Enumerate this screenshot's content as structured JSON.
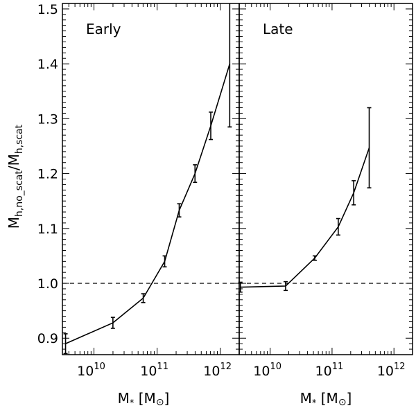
{
  "chart_data": {
    "type": "line",
    "x_scale": "log",
    "ylabel_main": "M",
    "ylabel_sub_num": "h,no_scat",
    "ylabel_sep": "/M",
    "ylabel_sub_den": "h,scat",
    "xlabel_main": "M",
    "xlabel_sub": "*",
    "xlabel_unit_open": " [M",
    "xlabel_unit_sym": "⊙",
    "xlabel_unit_close": "]",
    "xlim_log10": [
      9.5,
      12.3
    ],
    "ylim": [
      0.87,
      1.51
    ],
    "y_ticks": [
      "0.9",
      "1.0",
      "1.1",
      "1.2",
      "1.3",
      "1.4",
      "1.5"
    ],
    "y_tick_values": [
      0.9,
      1.0,
      1.1,
      1.2,
      1.3,
      1.4,
      1.5
    ],
    "x_ticks": [
      {
        "base": "10",
        "exp": "10",
        "log10": 10
      },
      {
        "base": "10",
        "exp": "11",
        "log10": 11
      },
      {
        "base": "10",
        "exp": "12",
        "log10": 12
      }
    ],
    "reference_line": 1.0,
    "panels": [
      {
        "label": "Early",
        "series": [
          {
            "log10_x": [
              9.55,
              10.3,
              10.78,
              11.12,
              11.35,
              11.6,
              11.85,
              12.15
            ],
            "y": [
              0.89,
              0.928,
              0.973,
              1.04,
              1.133,
              1.2,
              1.287,
              1.4
            ],
            "yerr": [
              0.018,
              0.01,
              0.008,
              0.01,
              0.012,
              0.016,
              0.025,
              0.115
            ]
          }
        ]
      },
      {
        "label": "Late",
        "series": [
          {
            "log10_x": [
              9.52,
              10.25,
              10.72,
              11.1,
              11.35,
              11.6
            ],
            "y": [
              0.993,
              0.995,
              1.046,
              1.103,
              1.165,
              1.247
            ],
            "yerr": [
              0.009,
              0.008,
              0.004,
              0.015,
              0.022,
              0.073
            ]
          }
        ]
      }
    ]
  }
}
